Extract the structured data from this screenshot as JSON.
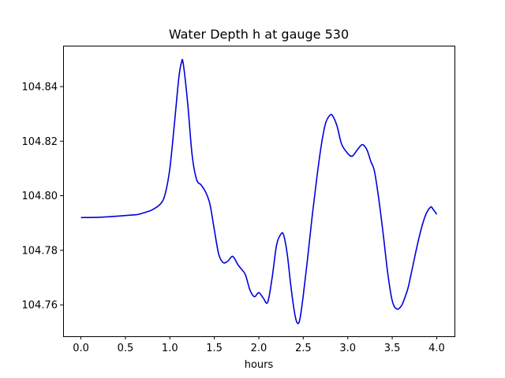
{
  "chart_data": {
    "type": "line",
    "title": "Water Depth h at gauge 530",
    "xlabel": "hours",
    "ylabel": "",
    "xlim": [
      -0.2,
      4.2
    ],
    "ylim": [
      104.7485,
      104.855
    ],
    "xticks": [
      0.0,
      0.5,
      1.0,
      1.5,
      2.0,
      2.5,
      3.0,
      3.5,
      4.0
    ],
    "xtick_labels": [
      "0.0",
      "0.5",
      "1.0",
      "1.5",
      "2.0",
      "2.5",
      "3.0",
      "3.5",
      "4.0"
    ],
    "yticks": [
      104.76,
      104.78,
      104.8,
      104.82,
      104.84
    ],
    "ytick_labels": [
      "104.76",
      "104.78",
      "104.80",
      "104.82",
      "104.84"
    ],
    "grid": false,
    "series": [
      {
        "color": "#0000dd",
        "x": [
          0.0,
          0.2,
          0.4,
          0.6,
          0.65,
          0.7,
          0.8,
          0.9,
          0.95,
          1.0,
          1.05,
          1.1,
          1.13,
          1.15,
          1.2,
          1.25,
          1.3,
          1.35,
          1.4,
          1.45,
          1.5,
          1.55,
          1.6,
          1.65,
          1.7,
          1.73,
          1.77,
          1.8,
          1.85,
          1.9,
          1.95,
          2.0,
          2.05,
          2.1,
          2.15,
          2.2,
          2.25,
          2.28,
          2.32,
          2.36,
          2.4,
          2.43,
          2.46,
          2.5,
          2.55,
          2.6,
          2.65,
          2.7,
          2.75,
          2.8,
          2.83,
          2.88,
          2.93,
          3.0,
          3.05,
          3.1,
          3.15,
          3.18,
          3.22,
          3.26,
          3.3,
          3.35,
          3.4,
          3.45,
          3.5,
          3.55,
          3.6,
          3.64,
          3.68,
          3.72,
          3.8,
          3.87,
          3.93,
          3.96,
          4.0
        ],
        "y": [
          104.792,
          104.7921,
          104.7925,
          104.793,
          104.7932,
          104.7937,
          104.7948,
          104.7972,
          104.801,
          104.81,
          104.826,
          104.843,
          104.8488,
          104.8485,
          104.834,
          104.815,
          104.806,
          104.804,
          104.8015,
          104.797,
          104.7875,
          104.7785,
          104.7755,
          104.776,
          104.7778,
          104.7768,
          104.7745,
          104.7733,
          104.771,
          104.7655,
          104.763,
          104.7645,
          104.7625,
          104.761,
          104.77,
          104.782,
          104.786,
          104.7855,
          104.7785,
          104.767,
          104.7575,
          104.7535,
          104.7545,
          104.7635,
          104.7775,
          104.7925,
          104.806,
          104.818,
          104.8265,
          104.8295,
          104.8293,
          104.8255,
          104.819,
          104.8155,
          104.8145,
          104.8165,
          104.8185,
          104.8185,
          104.8165,
          104.8125,
          104.809,
          104.7985,
          104.7855,
          104.7715,
          104.7615,
          104.7585,
          104.7595,
          104.7625,
          104.7665,
          104.7725,
          104.7845,
          104.7925,
          104.7958,
          104.795,
          104.7932
        ]
      }
    ]
  }
}
